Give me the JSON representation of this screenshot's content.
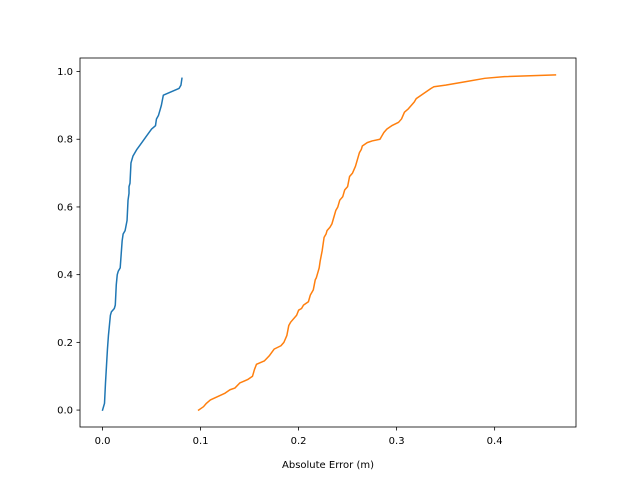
{
  "chart_data": {
    "type": "line",
    "title": "",
    "xlabel": "Absolute Error (m)",
    "ylabel": "",
    "xlim": [
      -0.023,
      0.483
    ],
    "ylim": [
      -0.05,
      1.04
    ],
    "xticks": [
      0.0,
      0.1,
      0.2,
      0.3,
      0.4
    ],
    "xtick_labels": [
      "0.0",
      "0.1",
      "0.2",
      "0.3",
      "0.4"
    ],
    "yticks": [
      0.0,
      0.2,
      0.4,
      0.6,
      0.8,
      1.0
    ],
    "ytick_labels": [
      "0.0",
      "0.2",
      "0.4",
      "0.6",
      "0.8",
      "1.0"
    ],
    "grid": false,
    "legend": null,
    "series": [
      {
        "color": "#1f77b4",
        "x": [
          0.0,
          0.002,
          0.003,
          0.004,
          0.005,
          0.006,
          0.007,
          0.008,
          0.009,
          0.012,
          0.013,
          0.014,
          0.015,
          0.016,
          0.018,
          0.019,
          0.02,
          0.021,
          0.023,
          0.025,
          0.026,
          0.027,
          0.027,
          0.028,
          0.029,
          0.031,
          0.033,
          0.035,
          0.04,
          0.045,
          0.05,
          0.054,
          0.055,
          0.057,
          0.058,
          0.06,
          0.062,
          0.07,
          0.078,
          0.08,
          0.081
        ],
        "y": [
          0.0,
          0.02,
          0.08,
          0.13,
          0.18,
          0.22,
          0.25,
          0.28,
          0.29,
          0.3,
          0.31,
          0.37,
          0.4,
          0.41,
          0.42,
          0.46,
          0.5,
          0.52,
          0.53,
          0.56,
          0.62,
          0.64,
          0.66,
          0.67,
          0.73,
          0.75,
          0.76,
          0.77,
          0.79,
          0.81,
          0.83,
          0.84,
          0.86,
          0.87,
          0.88,
          0.9,
          0.93,
          0.94,
          0.95,
          0.96,
          0.98
        ]
      },
      {
        "color": "#ff7f0e",
        "x": [
          0.098,
          0.103,
          0.106,
          0.11,
          0.125,
          0.13,
          0.135,
          0.14,
          0.148,
          0.153,
          0.155,
          0.157,
          0.165,
          0.17,
          0.175,
          0.182,
          0.185,
          0.188,
          0.19,
          0.192,
          0.198,
          0.2,
          0.203,
          0.205,
          0.21,
          0.212,
          0.215,
          0.216,
          0.217,
          0.218,
          0.22,
          0.221,
          0.222,
          0.224,
          0.226,
          0.228,
          0.229,
          0.232,
          0.234,
          0.236,
          0.238,
          0.24,
          0.242,
          0.245,
          0.247,
          0.25,
          0.252,
          0.255,
          0.258,
          0.26,
          0.262,
          0.264,
          0.265,
          0.27,
          0.275,
          0.283,
          0.287,
          0.29,
          0.295,
          0.302,
          0.305,
          0.308,
          0.312,
          0.315,
          0.318,
          0.32,
          0.325,
          0.33,
          0.335,
          0.338,
          0.35,
          0.37,
          0.39,
          0.41,
          0.462
        ],
        "y": [
          0.0,
          0.01,
          0.02,
          0.03,
          0.05,
          0.06,
          0.065,
          0.08,
          0.09,
          0.1,
          0.12,
          0.135,
          0.145,
          0.16,
          0.18,
          0.19,
          0.2,
          0.22,
          0.25,
          0.26,
          0.28,
          0.295,
          0.3,
          0.31,
          0.32,
          0.34,
          0.355,
          0.37,
          0.385,
          0.39,
          0.41,
          0.42,
          0.44,
          0.47,
          0.51,
          0.52,
          0.53,
          0.54,
          0.55,
          0.57,
          0.59,
          0.6,
          0.62,
          0.63,
          0.65,
          0.66,
          0.69,
          0.7,
          0.72,
          0.74,
          0.76,
          0.77,
          0.78,
          0.79,
          0.795,
          0.8,
          0.82,
          0.83,
          0.84,
          0.85,
          0.86,
          0.88,
          0.89,
          0.9,
          0.91,
          0.92,
          0.93,
          0.94,
          0.95,
          0.955,
          0.96,
          0.97,
          0.98,
          0.985,
          0.99
        ]
      }
    ]
  }
}
